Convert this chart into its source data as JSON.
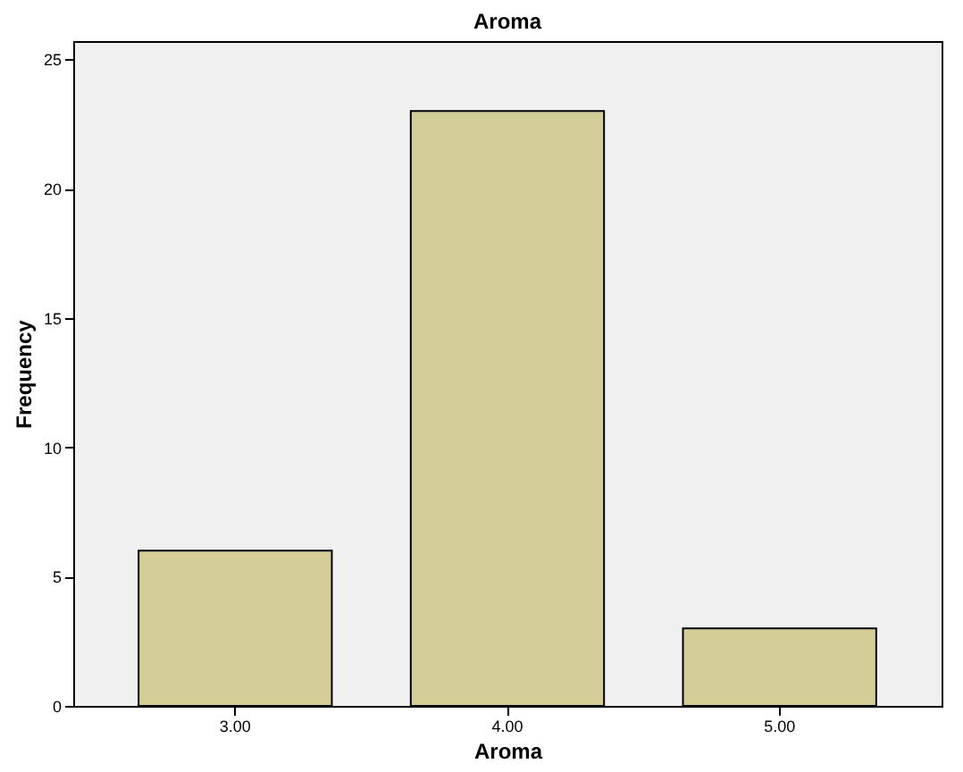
{
  "chart_data": {
    "type": "bar",
    "title": "Aroma",
    "xlabel": "Aroma",
    "ylabel": "Frequency",
    "categories": [
      "3.00",
      "4.00",
      "5.00"
    ],
    "values": [
      6,
      23,
      3
    ],
    "color": "#d3ce97",
    "ylim": [
      0,
      25.7
    ],
    "yticks": [
      0,
      5,
      10,
      15,
      20,
      25
    ],
    "grid": false
  }
}
